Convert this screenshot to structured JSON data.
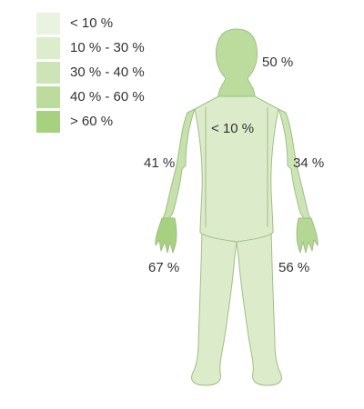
{
  "legend": [
    {
      "label": "< 10 %",
      "color": "#e9f3df"
    },
    {
      "label": "10 % - 30 %",
      "color": "#dcedcc"
    },
    {
      "label": "30 % - 40 %",
      "color": "#cde5b6"
    },
    {
      "label": "40 % - 60 %",
      "color": "#bcdc9d"
    },
    {
      "label": "> 60 %",
      "color": "#a7d17f"
    }
  ],
  "regions": {
    "head_neck": {
      "value": "50 %",
      "color": "#bcdc9d"
    },
    "torso_legs": {
      "value": "< 10 %",
      "color": "#dcebc9"
    },
    "left_arm": {
      "value": "41 %",
      "color": "#c6e1ab"
    },
    "right_arm": {
      "value": "34 %",
      "color": "#cde5b6"
    },
    "left_hand": {
      "value": "67 %",
      "color": "#a7d17f"
    },
    "right_hand": {
      "value": "56 %",
      "color": "#b4d893"
    }
  },
  "outline_color": "#9fbf86"
}
